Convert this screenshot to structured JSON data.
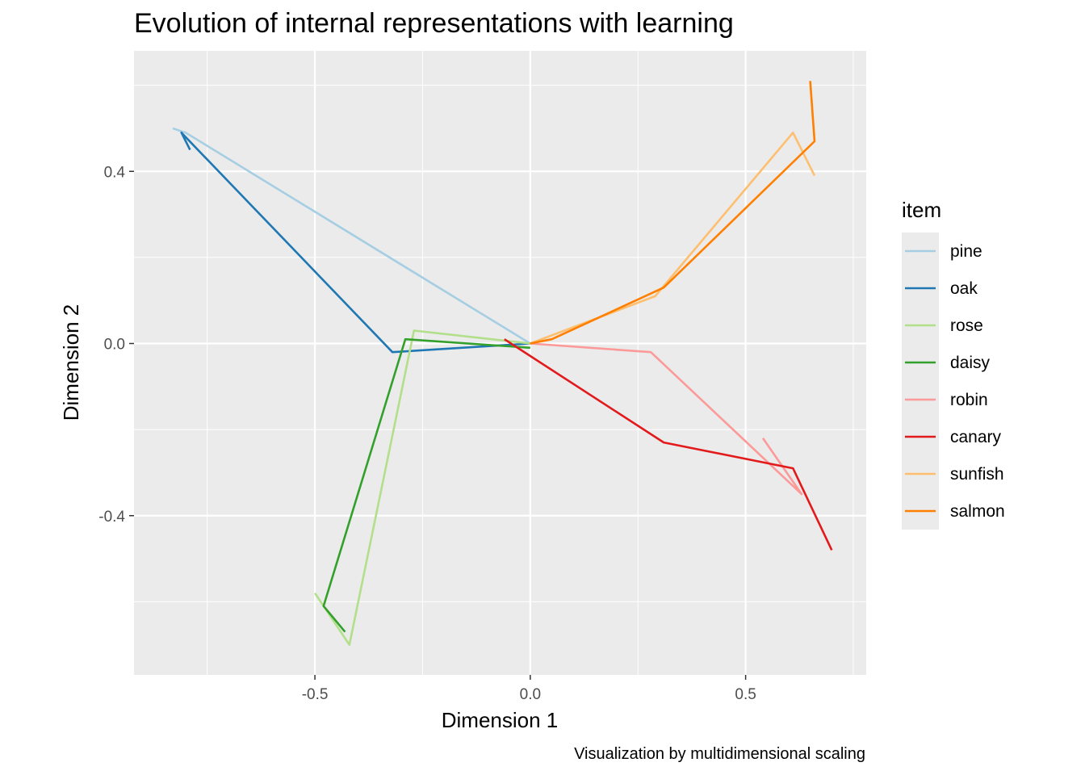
{
  "chart_data": {
    "type": "line",
    "title": "Evolution of internal representations with learning",
    "xlabel": "Dimension 1",
    "ylabel": "Dimension 2",
    "caption": "Visualization by multidimensional scaling",
    "xlim": [
      -0.92,
      0.78
    ],
    "ylim": [
      -0.77,
      0.68
    ],
    "x_ticks": [
      {
        "value": -0.5,
        "label": "-0.5"
      },
      {
        "value": 0.0,
        "label": "0.0"
      },
      {
        "value": 0.5,
        "label": "0.5"
      }
    ],
    "y_ticks": [
      {
        "value": 0.4,
        "label": "0.4"
      },
      {
        "value": 0.0,
        "label": "0.0"
      },
      {
        "value": -0.4,
        "label": "-0.4"
      }
    ],
    "x_minor": [
      -0.75,
      -0.25,
      0.25,
      0.75
    ],
    "y_minor": [
      0.6,
      0.2,
      -0.2,
      -0.6
    ],
    "grid": true,
    "background": "#ebebeb",
    "legend": {
      "title": "item",
      "position": "right"
    },
    "series": [
      {
        "name": "pine",
        "color": "#a6cee3",
        "x": [
          0.0,
          -0.8,
          -0.83
        ],
        "y": [
          0.0,
          0.49,
          0.5
        ]
      },
      {
        "name": "oak",
        "color": "#1f78b4",
        "x": [
          0.0,
          -0.32,
          -0.81,
          -0.79
        ],
        "y": [
          0.0,
          -0.02,
          0.49,
          0.45
        ]
      },
      {
        "name": "rose",
        "color": "#b2df8a",
        "x": [
          0.0,
          -0.27,
          -0.42,
          -0.5
        ],
        "y": [
          0.0,
          0.03,
          -0.7,
          -0.58
        ]
      },
      {
        "name": "daisy",
        "color": "#33a02c",
        "x": [
          0.0,
          -0.29,
          -0.48,
          -0.43
        ],
        "y": [
          -0.01,
          0.01,
          -0.61,
          -0.67
        ]
      },
      {
        "name": "robin",
        "color": "#fb9a99",
        "x": [
          0.0,
          0.28,
          0.63,
          0.54
        ],
        "y": [
          0.0,
          -0.02,
          -0.35,
          -0.22
        ]
      },
      {
        "name": "canary",
        "color": "#e31a1c",
        "x": [
          -0.06,
          0.31,
          0.61,
          0.7
        ],
        "y": [
          0.01,
          -0.23,
          -0.29,
          -0.48
        ]
      },
      {
        "name": "sunfish",
        "color": "#fdbf6f",
        "x": [
          0.0,
          0.29,
          0.61,
          0.66
        ],
        "y": [
          0.0,
          0.11,
          0.49,
          0.39
        ]
      },
      {
        "name": "salmon",
        "color": "#ff7f00",
        "x": [
          0.0,
          0.05,
          0.31,
          0.66,
          0.65
        ],
        "y": [
          0.0,
          0.01,
          0.13,
          0.47,
          0.61
        ]
      }
    ]
  }
}
